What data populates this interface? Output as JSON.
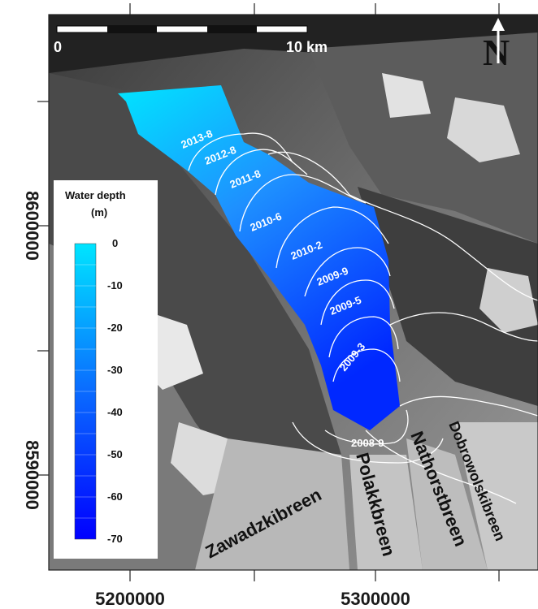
{
  "map": {
    "x_ticks": [
      "5200000",
      "5300000"
    ],
    "y_ticks": [
      "8600000",
      "8590000"
    ],
    "scale_bar": {
      "start_label": "0",
      "end_label": "10 km"
    },
    "north_arrow_label": "N",
    "legend": {
      "title_line1": "Water depth",
      "title_line2": "(m)",
      "labels": [
        "0",
        "-10",
        "-20",
        "-30",
        "-40",
        "-50",
        "-60",
        "-70"
      ]
    },
    "contour_labels": [
      "2013-8",
      "2012-8",
      "2011-8",
      "2010-6",
      "2010-2",
      "2009-9",
      "2009-5",
      "2009-3",
      "2008-9"
    ],
    "glaciers": [
      "Zawadzkibreen",
      "Polakkbreen",
      "Nathorstbreen",
      "Dobrowolskibreen"
    ],
    "colors": {
      "shallow": "#00e5ff",
      "deep": "#0000ff",
      "contour": "#ffffff"
    }
  }
}
